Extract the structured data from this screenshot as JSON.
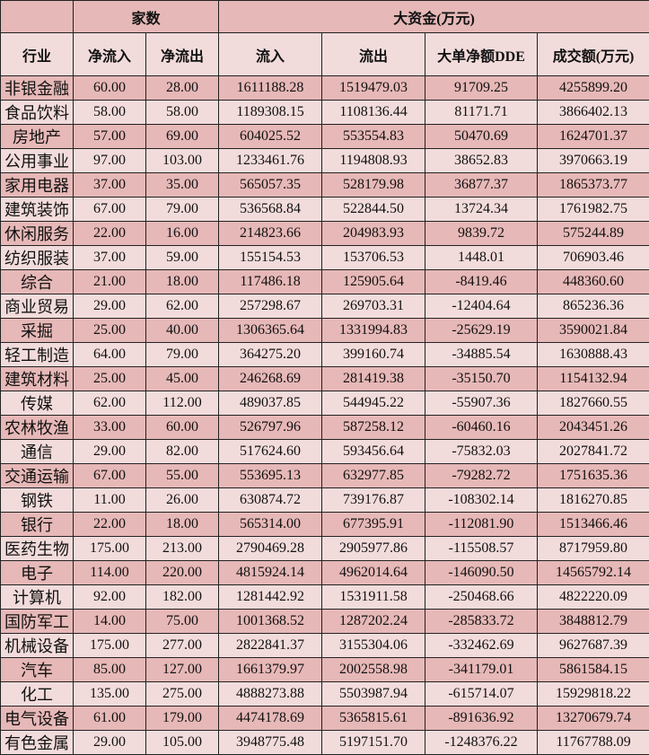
{
  "header": {
    "group_count": "家数",
    "group_funds": "大资金(万元)",
    "columns": [
      "行业",
      "净流入",
      "净流出",
      "流入",
      "流出",
      "大单净额DDE",
      "成交额(万元)"
    ]
  },
  "colors": {
    "dark_row": "#e6b8b7",
    "light_row": "#f2dcdb"
  },
  "rows": [
    [
      "非银金融",
      "60.00",
      "28.00",
      "1611188.28",
      "1519479.03",
      "91709.25",
      "4255899.20"
    ],
    [
      "食品饮料",
      "58.00",
      "58.00",
      "1189308.15",
      "1108136.44",
      "81171.71",
      "3866402.13"
    ],
    [
      "房地产",
      "57.00",
      "69.00",
      "604025.52",
      "553554.83",
      "50470.69",
      "1624701.37"
    ],
    [
      "公用事业",
      "97.00",
      "103.00",
      "1233461.76",
      "1194808.93",
      "38652.83",
      "3970663.19"
    ],
    [
      "家用电器",
      "37.00",
      "35.00",
      "565057.35",
      "528179.98",
      "36877.37",
      "1865373.77"
    ],
    [
      "建筑装饰",
      "67.00",
      "79.00",
      "536568.84",
      "522844.50",
      "13724.34",
      "1761982.75"
    ],
    [
      "休闲服务",
      "22.00",
      "16.00",
      "214823.66",
      "204983.93",
      "9839.72",
      "575244.89"
    ],
    [
      "纺织服装",
      "37.00",
      "59.00",
      "155154.53",
      "153706.53",
      "1448.01",
      "706903.46"
    ],
    [
      "综合",
      "21.00",
      "18.00",
      "117486.18",
      "125905.64",
      "-8419.46",
      "448360.60"
    ],
    [
      "商业贸易",
      "29.00",
      "62.00",
      "257298.67",
      "269703.31",
      "-12404.64",
      "865236.36"
    ],
    [
      "采掘",
      "25.00",
      "40.00",
      "1306365.64",
      "1331994.83",
      "-25629.19",
      "3590021.84"
    ],
    [
      "轻工制造",
      "64.00",
      "79.00",
      "364275.20",
      "399160.74",
      "-34885.54",
      "1630888.43"
    ],
    [
      "建筑材料",
      "25.00",
      "45.00",
      "246268.69",
      "281419.38",
      "-35150.70",
      "1154132.94"
    ],
    [
      "传媒",
      "62.00",
      "112.00",
      "489037.85",
      "544945.22",
      "-55907.36",
      "1827660.55"
    ],
    [
      "农林牧渔",
      "33.00",
      "60.00",
      "526797.96",
      "587258.12",
      "-60460.16",
      "2043451.26"
    ],
    [
      "通信",
      "29.00",
      "82.00",
      "517624.60",
      "593456.64",
      "-75832.03",
      "2027841.72"
    ],
    [
      "交通运输",
      "67.00",
      "55.00",
      "553695.13",
      "632977.85",
      "-79282.72",
      "1751635.36"
    ],
    [
      "钢铁",
      "11.00",
      "26.00",
      "630874.72",
      "739176.87",
      "-108302.14",
      "1816270.85"
    ],
    [
      "银行",
      "22.00",
      "18.00",
      "565314.00",
      "677395.91",
      "-112081.90",
      "1513466.46"
    ],
    [
      "医药生物",
      "175.00",
      "213.00",
      "2790469.28",
      "2905977.86",
      "-115508.57",
      "8717959.80"
    ],
    [
      "电子",
      "114.00",
      "220.00",
      "4815924.14",
      "4962014.64",
      "-146090.50",
      "14565792.14"
    ],
    [
      "计算机",
      "92.00",
      "182.00",
      "1281442.92",
      "1531911.58",
      "-250468.66",
      "4822220.09"
    ],
    [
      "国防军工",
      "14.00",
      "75.00",
      "1001368.52",
      "1287202.24",
      "-285833.72",
      "3848812.79"
    ],
    [
      "机械设备",
      "175.00",
      "277.00",
      "2822841.37",
      "3155304.06",
      "-332462.69",
      "9627687.39"
    ],
    [
      "汽车",
      "85.00",
      "127.00",
      "1661379.97",
      "2002558.98",
      "-341179.01",
      "5861584.15"
    ],
    [
      "化工",
      "135.00",
      "275.00",
      "4888273.88",
      "5503987.94",
      "-615714.07",
      "15929818.22"
    ],
    [
      "电气设备",
      "61.00",
      "179.00",
      "4474178.69",
      "5365815.61",
      "-891636.92",
      "13270679.74"
    ],
    [
      "有色金属",
      "29.00",
      "105.00",
      "3948775.48",
      "5197151.70",
      "-1248376.22",
      "11767788.09"
    ]
  ]
}
